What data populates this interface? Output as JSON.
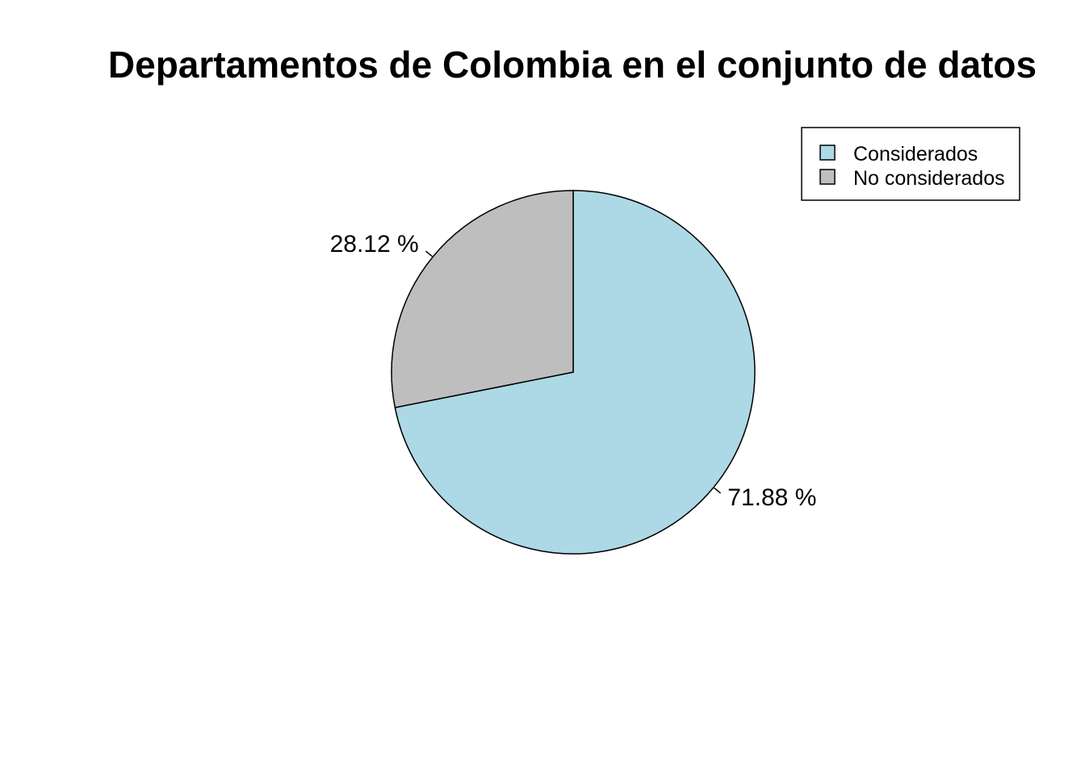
{
  "chart_data": {
    "type": "pie",
    "title": "Departamentos de Colombia en el conjunto de datos",
    "categories": [
      "Considerados",
      "No considerados"
    ],
    "values": [
      71.88,
      28.12
    ],
    "labels": [
      "71.88 %",
      "28.12 %"
    ],
    "colors": [
      "#add8e6",
      "#bebebe"
    ],
    "start_angle_deg": 90,
    "direction": "clockwise",
    "legend": {
      "position": "top-right",
      "entries": [
        "Considerados",
        "No considerados"
      ]
    }
  }
}
